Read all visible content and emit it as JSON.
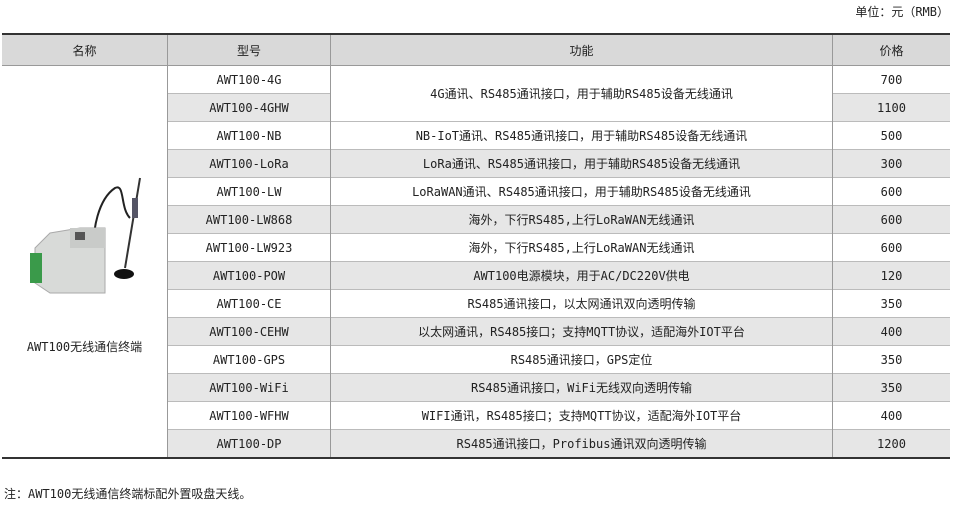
{
  "unit_label": "单位：元（RMB）",
  "headers": [
    "名称",
    "型号",
    "功能",
    "价格"
  ],
  "product_name": "AWT100无线通信终端",
  "product_image_icon": "wireless-terminal-with-antenna",
  "rows": [
    {
      "model": "AWT100-4G",
      "function": "4G通讯、RS485通讯接口，用于辅助RS485设备无线通讯",
      "price": "700"
    },
    {
      "model": "AWT100-4GHW",
      "price": "1100"
    },
    {
      "model": "AWT100-NB",
      "function": "NB-IoT通讯、RS485通讯接口，用于辅助RS485设备无线通讯",
      "price": "500"
    },
    {
      "model": "AWT100-LoRa",
      "function": "LoRa通讯、RS485通讯接口，用于辅助RS485设备无线通讯",
      "price": "300"
    },
    {
      "model": "AWT100-LW",
      "function": "LoRaWAN通讯、RS485通讯接口，用于辅助RS485设备无线通讯",
      "price": "600"
    },
    {
      "model": "AWT100-LW868",
      "function": "海外，下行RS485,上行LoRaWAN无线通讯",
      "price": "600"
    },
    {
      "model": "AWT100-LW923",
      "function": "海外，下行RS485,上行LoRaWAN无线通讯",
      "price": "600"
    },
    {
      "model": "AWT100-POW",
      "function": "AWT100电源模块，用于AC/DC220V供电",
      "price": "120"
    },
    {
      "model": "AWT100-CE",
      "function": "RS485通讯接口，以太网通讯双向透明传输",
      "price": "350"
    },
    {
      "model": "AWT100-CEHW",
      "function": "以太网通讯，RS485接口；支持MQTT协议，适配海外IOT平台",
      "price": "400"
    },
    {
      "model": "AWT100-GPS",
      "function": "RS485通讯接口，GPS定位",
      "price": "350"
    },
    {
      "model": "AWT100-WiFi",
      "function": "RS485通讯接口，WiFi无线双向透明传输",
      "price": "350"
    },
    {
      "model": "AWT100-WFHW",
      "function": "WIFI通讯，RS485接口；支持MQTT协议，适配海外IOT平台",
      "price": "400"
    },
    {
      "model": "AWT100-DP",
      "function": "RS485通讯接口，Profibus通讯双向透明传输",
      "price": "1200"
    }
  ],
  "note": "注：AWT100无线通信终端标配外置吸盘天线。"
}
